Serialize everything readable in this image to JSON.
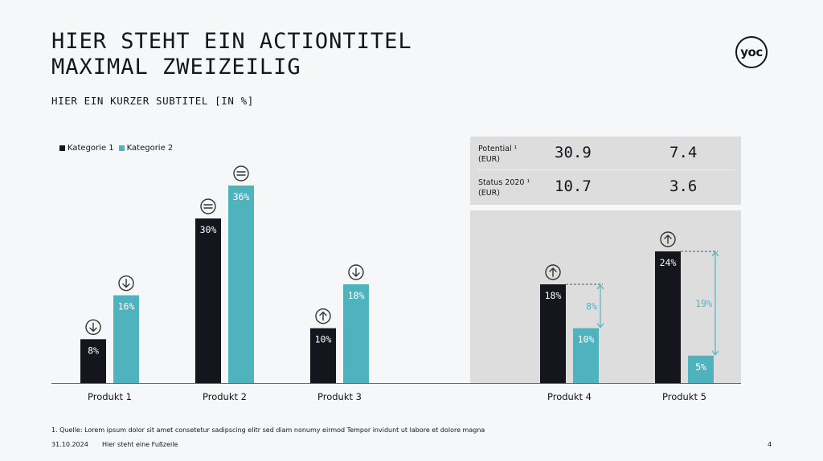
{
  "title_line1": "HIER STEHT EIN ACTIONTITEL",
  "title_line2": "MAXIMAL ZWEIZEILIG",
  "subtitle": "HIER EIN KURZER SUBTITEL [IN %]",
  "logo_text": "yoc",
  "table": {
    "rows": [
      {
        "label": "Potential ¹",
        "unit": "(EUR)",
        "values": [
          "30.9",
          "7.4"
        ]
      },
      {
        "label": "Status 2020 ¹",
        "unit": "(EUR)",
        "values": [
          "10.7",
          "3.6"
        ]
      }
    ]
  },
  "footnote": "1. Quelle: Lorem ipsum dolor sit amet consetetur sadipscing elitr sed diam nonumy eirmod Tempor invidunt ut labore et dolore magna",
  "date": "31.10.2024",
  "footer": "Hier steht eine Fußzeile",
  "page_number": "4",
  "colors": {
    "kategorie1": "#15151d",
    "kategorie2": "#4fb3be",
    "panel": "#dddddd",
    "icon": "#333333"
  },
  "chart_data": {
    "type": "bar",
    "title": "HIER EIN KURZER SUBTITEL [IN %]",
    "xlabel": "",
    "ylabel": "",
    "ylim": [
      0,
      36
    ],
    "grid": false,
    "legend_position": "top-left",
    "categories": [
      "Produkt 1",
      "Produkt 2",
      "Produkt 3",
      "Produkt 4",
      "Produkt 5"
    ],
    "series": [
      {
        "name": "Kategorie 1",
        "values": [
          8,
          30,
          10,
          18,
          24
        ],
        "labels": [
          "8%",
          "30%",
          "10%",
          "18%",
          "24%"
        ],
        "trend_icons": [
          "down",
          "equal",
          "up",
          "up",
          "up"
        ]
      },
      {
        "name": "Kategorie 2",
        "values": [
          16,
          36,
          18,
          10,
          5
        ],
        "labels": [
          "16%",
          "36%",
          "18%",
          "10%",
          "5%"
        ],
        "trend_icons": [
          "down",
          "equal",
          "down",
          null,
          null
        ]
      }
    ],
    "differences": [
      {
        "category": "Produkt 4",
        "value": 8,
        "label": "8%"
      },
      {
        "category": "Produkt 5",
        "value": 19,
        "label": "19%"
      }
    ]
  }
}
